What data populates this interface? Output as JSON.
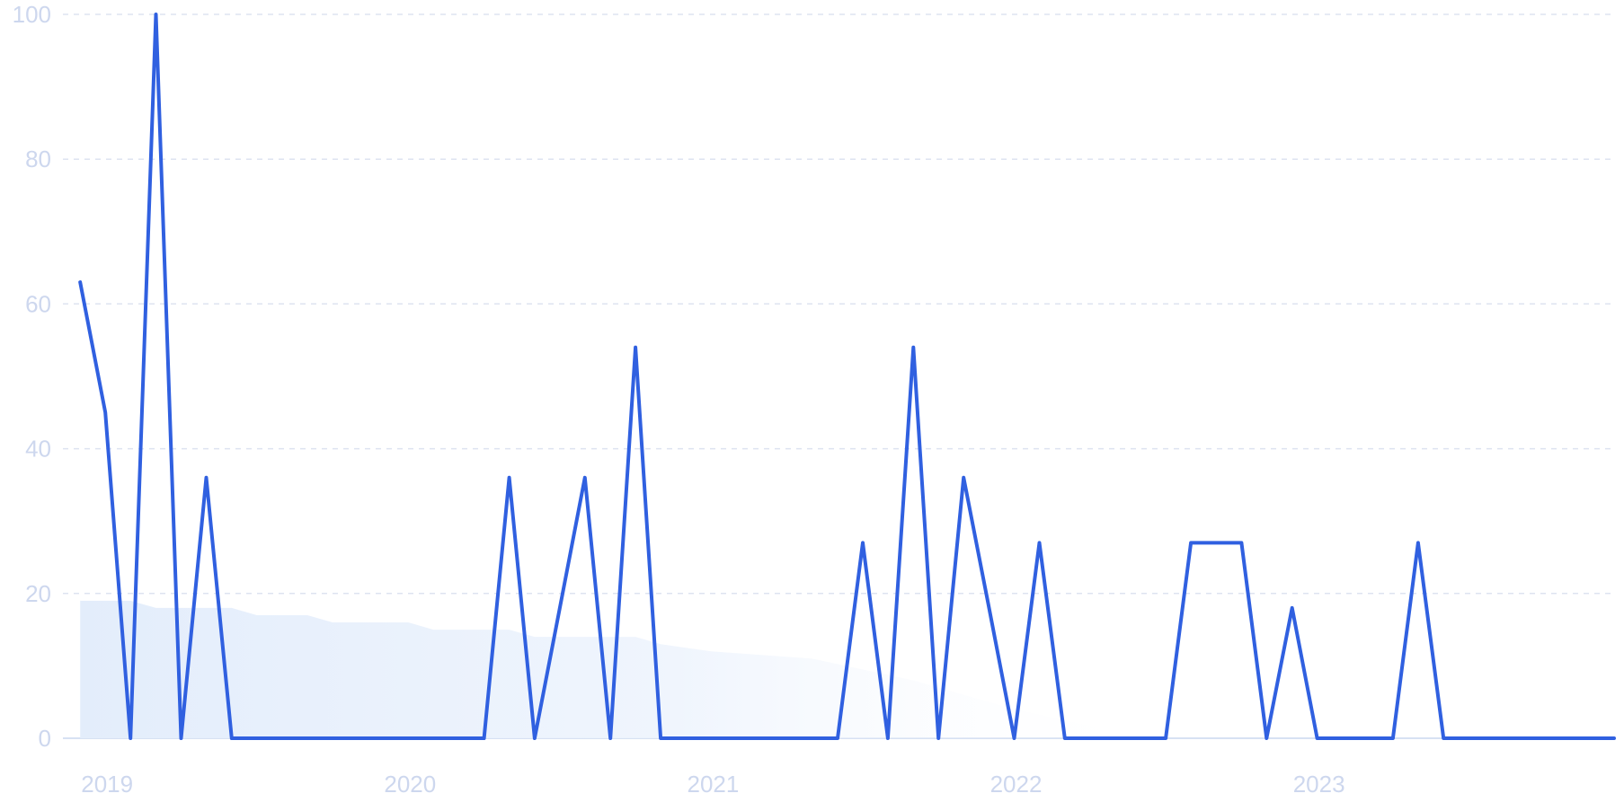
{
  "chart_data": {
    "type": "line",
    "ylim": [
      0,
      100
    ],
    "yticks": [
      0,
      20,
      40,
      60,
      80,
      100
    ],
    "xticks": [
      {
        "label": "2019",
        "x": 2019.0
      },
      {
        "label": "2020",
        "x": 2020.0
      },
      {
        "label": "2021",
        "x": 2021.0
      },
      {
        "label": "2022",
        "x": 2022.0
      },
      {
        "label": "2023",
        "x": 2023.0
      }
    ],
    "xlim": [
      2018.86,
      2023.98
    ],
    "grid": true,
    "line_color": "#3060e0",
    "area_color": "#e3edfb",
    "series": [
      {
        "values": [
          {
            "x": 2018.917,
            "y": 63
          },
          {
            "x": 2019.0,
            "y": 45
          },
          {
            "x": 2019.083,
            "y": 0
          },
          {
            "x": 2019.167,
            "y": 100
          },
          {
            "x": 2019.25,
            "y": 0
          },
          {
            "x": 2019.333,
            "y": 36
          },
          {
            "x": 2019.417,
            "y": 0
          },
          {
            "x": 2019.5,
            "y": 0
          },
          {
            "x": 2019.583,
            "y": 0
          },
          {
            "x": 2019.667,
            "y": 0
          },
          {
            "x": 2019.75,
            "y": 0
          },
          {
            "x": 2019.833,
            "y": 0
          },
          {
            "x": 2019.917,
            "y": 0
          },
          {
            "x": 2020.0,
            "y": 0
          },
          {
            "x": 2020.083,
            "y": 0
          },
          {
            "x": 2020.167,
            "y": 0
          },
          {
            "x": 2020.25,
            "y": 0
          },
          {
            "x": 2020.333,
            "y": 36
          },
          {
            "x": 2020.417,
            "y": 0
          },
          {
            "x": 2020.5,
            "y": 18
          },
          {
            "x": 2020.583,
            "y": 36
          },
          {
            "x": 2020.667,
            "y": 0
          },
          {
            "x": 2020.75,
            "y": 54
          },
          {
            "x": 2020.833,
            "y": 0
          },
          {
            "x": 2020.917,
            "y": 0
          },
          {
            "x": 2021.0,
            "y": 0
          },
          {
            "x": 2021.083,
            "y": 0
          },
          {
            "x": 2021.167,
            "y": 0
          },
          {
            "x": 2021.25,
            "y": 0
          },
          {
            "x": 2021.333,
            "y": 0
          },
          {
            "x": 2021.417,
            "y": 0
          },
          {
            "x": 2021.5,
            "y": 27
          },
          {
            "x": 2021.583,
            "y": 0
          },
          {
            "x": 2021.667,
            "y": 54
          },
          {
            "x": 2021.75,
            "y": 0
          },
          {
            "x": 2021.833,
            "y": 36
          },
          {
            "x": 2021.917,
            "y": 18
          },
          {
            "x": 2022.0,
            "y": 0
          },
          {
            "x": 2022.083,
            "y": 27
          },
          {
            "x": 2022.167,
            "y": 0
          },
          {
            "x": 2022.25,
            "y": 0
          },
          {
            "x": 2022.333,
            "y": 0
          },
          {
            "x": 2022.417,
            "y": 0
          },
          {
            "x": 2022.5,
            "y": 0
          },
          {
            "x": 2022.583,
            "y": 27
          },
          {
            "x": 2022.667,
            "y": 27
          },
          {
            "x": 2022.75,
            "y": 27
          },
          {
            "x": 2022.833,
            "y": 0
          },
          {
            "x": 2022.917,
            "y": 18
          },
          {
            "x": 2023.0,
            "y": 0
          },
          {
            "x": 2023.083,
            "y": 0
          },
          {
            "x": 2023.167,
            "y": 0
          },
          {
            "x": 2023.25,
            "y": 0
          },
          {
            "x": 2023.333,
            "y": 27
          },
          {
            "x": 2023.417,
            "y": 0
          },
          {
            "x": 2023.5,
            "y": 0
          },
          {
            "x": 2023.583,
            "y": 0
          },
          {
            "x": 2023.667,
            "y": 0
          },
          {
            "x": 2023.75,
            "y": 0
          },
          {
            "x": 2023.833,
            "y": 0
          },
          {
            "x": 2023.917,
            "y": 0
          },
          {
            "x": 2023.98,
            "y": 0
          }
        ]
      },
      {
        "type": "area",
        "values": [
          {
            "x": 2018.917,
            "y": 19
          },
          {
            "x": 2019.083,
            "y": 19
          },
          {
            "x": 2019.167,
            "y": 18
          },
          {
            "x": 2019.417,
            "y": 18
          },
          {
            "x": 2019.5,
            "y": 17
          },
          {
            "x": 2019.667,
            "y": 17
          },
          {
            "x": 2019.75,
            "y": 16
          },
          {
            "x": 2020.0,
            "y": 16
          },
          {
            "x": 2020.083,
            "y": 15
          },
          {
            "x": 2020.333,
            "y": 15
          },
          {
            "x": 2020.417,
            "y": 14
          },
          {
            "x": 2020.75,
            "y": 14
          },
          {
            "x": 2020.833,
            "y": 13
          },
          {
            "x": 2021.0,
            "y": 12
          },
          {
            "x": 2021.333,
            "y": 11
          },
          {
            "x": 2021.667,
            "y": 8
          },
          {
            "x": 2022.0,
            "y": 4
          },
          {
            "x": 2022.333,
            "y": 1
          },
          {
            "x": 2022.5,
            "y": 0
          }
        ]
      }
    ]
  }
}
